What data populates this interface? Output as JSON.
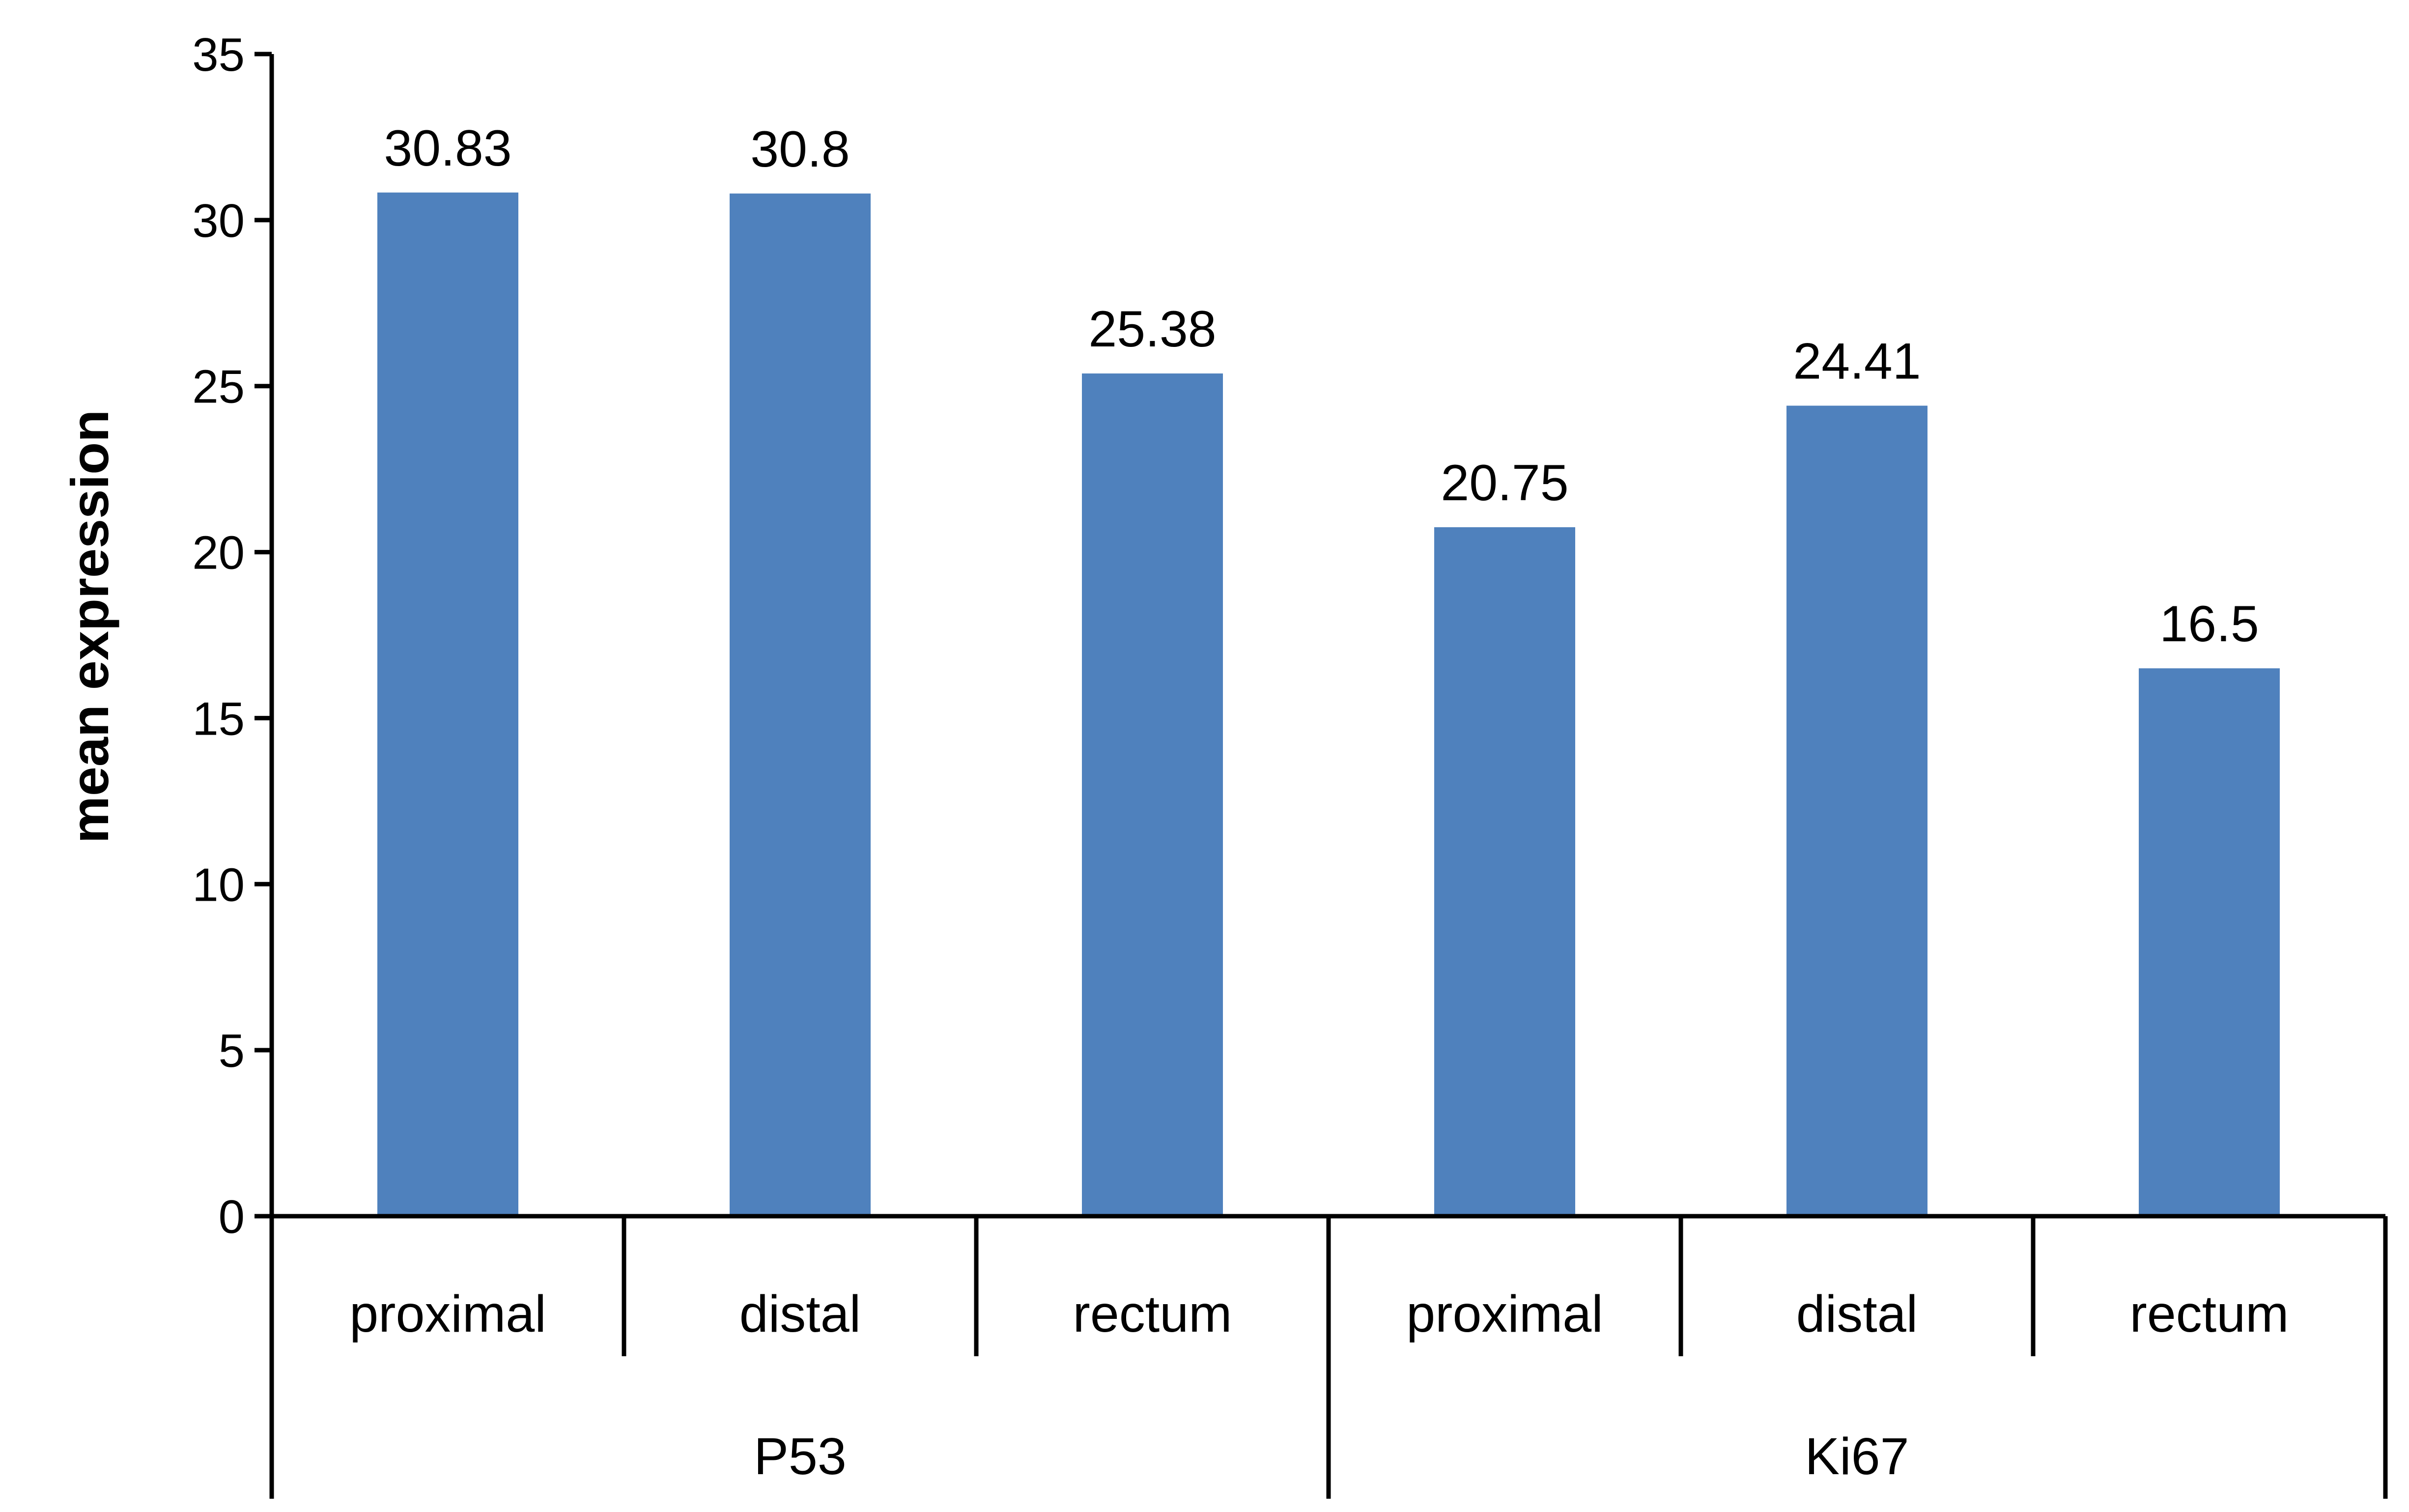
{
  "chart_data": {
    "type": "bar",
    "title": "",
    "xlabel": "",
    "ylabel": "mean expression",
    "ylim": [
      0,
      35
    ],
    "yticks": [
      0,
      5,
      10,
      15,
      20,
      25,
      30,
      35
    ],
    "ytick_labels": [
      "0",
      "5",
      "10",
      "15",
      "20",
      "25",
      "30",
      "35"
    ],
    "grid": false,
    "legend": "none",
    "bar_color": "#4F81BD",
    "categories": [
      "proximal",
      "distal",
      "rectum",
      "proximal",
      "distal",
      "rectum"
    ],
    "groups": [
      {
        "name": "P53",
        "categories": [
          "proximal",
          "distal",
          "rectum"
        ]
      },
      {
        "name": "Ki67",
        "categories": [
          "proximal",
          "distal",
          "rectum"
        ]
      }
    ],
    "values": [
      30.83,
      30.8,
      25.38,
      20.75,
      24.41,
      16.5
    ],
    "data_labels": [
      "30.83",
      "30.8",
      "25.38",
      "20.75",
      "24.41",
      "16.5"
    ]
  }
}
